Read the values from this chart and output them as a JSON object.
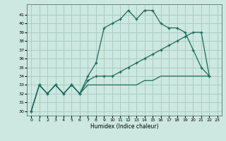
{
  "xlabel": "Humidex (Indice chaleur)",
  "bg_color": "#cce8e0",
  "line_color": "#1a6b5a",
  "grid_color": "#aaccc4",
  "xlim": [
    -0.5,
    23.5
  ],
  "ylim": [
    29.5,
    42.2
  ],
  "xticks": [
    0,
    1,
    2,
    3,
    4,
    5,
    6,
    7,
    8,
    9,
    10,
    11,
    12,
    13,
    14,
    15,
    16,
    17,
    18,
    19,
    20,
    21,
    22,
    23
  ],
  "yticks": [
    30,
    31,
    32,
    33,
    34,
    35,
    36,
    37,
    38,
    39,
    40,
    41
  ],
  "line1_x": [
    0,
    1,
    2,
    3,
    4,
    5,
    6,
    7,
    8,
    9,
    10,
    11,
    12,
    13,
    14,
    15,
    16,
    17,
    18,
    19,
    20,
    21,
    22
  ],
  "line1_y": [
    30,
    33,
    32,
    33,
    32,
    33,
    32,
    34,
    35.5,
    39.5,
    40,
    40.5,
    41.5,
    40.5,
    41.5,
    41.5,
    40,
    39.5,
    39.5,
    39,
    37,
    35,
    34
  ],
  "line2_x": [
    0,
    1,
    2,
    3,
    4,
    5,
    6,
    7,
    8,
    9,
    10,
    11,
    12,
    13,
    14,
    15,
    16,
    17,
    18,
    19,
    20,
    21,
    22
  ],
  "line2_y": [
    30,
    33,
    32,
    33,
    32,
    33,
    32,
    33.5,
    34,
    34,
    34,
    34.5,
    35,
    35.5,
    36,
    36.5,
    37,
    37.5,
    38,
    38.5,
    39,
    39,
    34
  ],
  "line3_x": [
    0,
    1,
    2,
    3,
    4,
    5,
    6,
    7,
    8,
    9,
    10,
    11,
    12,
    13,
    14,
    15,
    16,
    17,
    18,
    19,
    20,
    21,
    22
  ],
  "line3_y": [
    30,
    33,
    32,
    33,
    32,
    33,
    32,
    33,
    33,
    33,
    33,
    33,
    33,
    33,
    33.5,
    33.5,
    34,
    34,
    34,
    34,
    34,
    34,
    34
  ]
}
